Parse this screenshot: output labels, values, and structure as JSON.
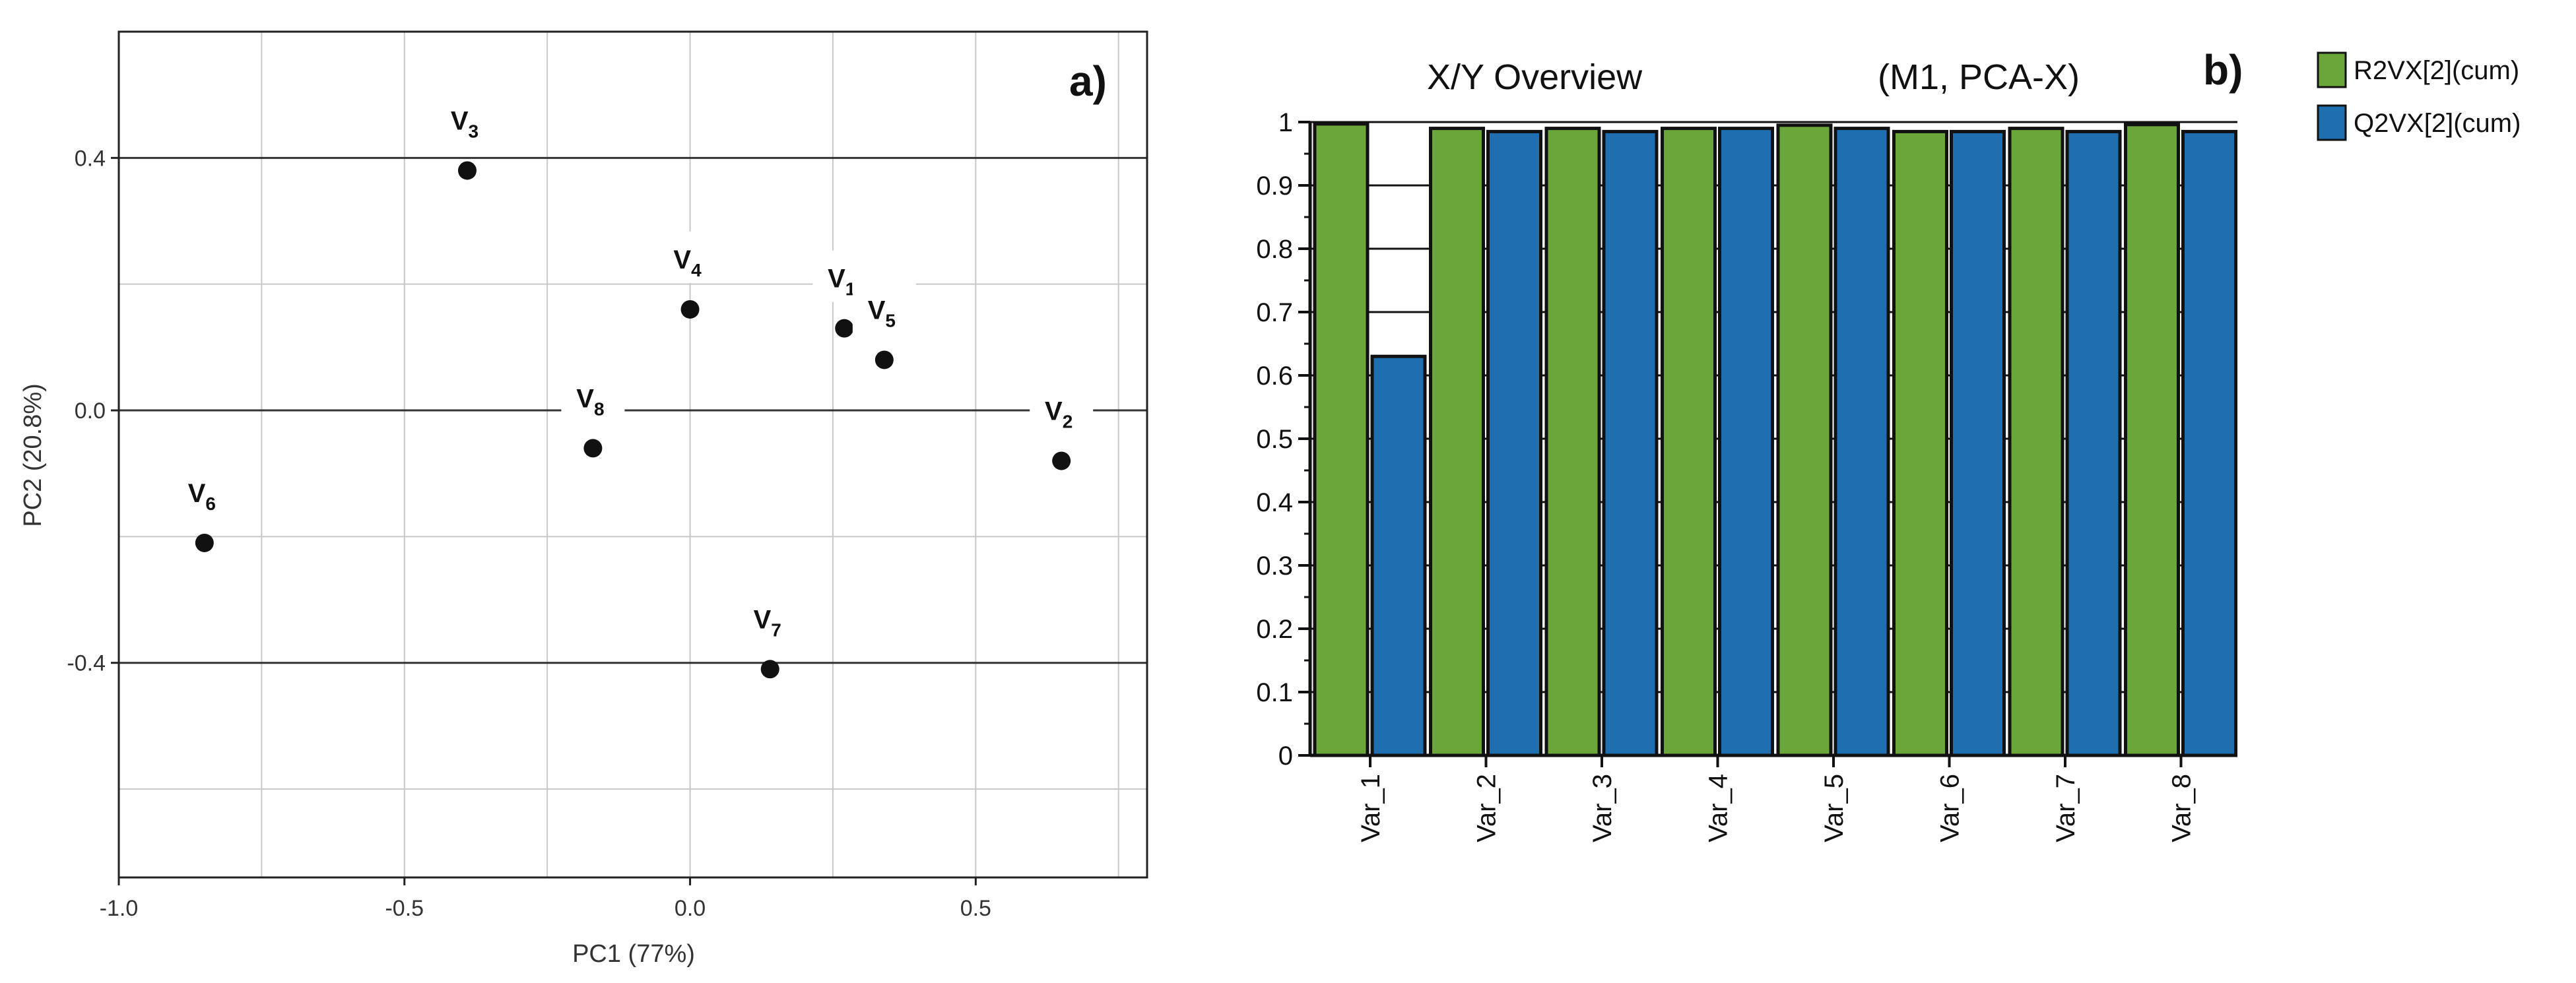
{
  "chart_data": [
    {
      "type": "scatter",
      "panel_label": "a)",
      "title": "",
      "xlabel": "PC1 (77%)",
      "ylabel": "PC2 (20.8%)",
      "xlim": [
        -1.0,
        0.8
      ],
      "ylim": [
        -0.74,
        0.6
      ],
      "xticks": [
        -1.0,
        -0.5,
        0.0,
        0.5
      ],
      "xtick_labels": [
        "-1.0",
        "-0.5",
        "0.0",
        "0.5"
      ],
      "yticks": [
        -0.4,
        0.0,
        0.4
      ],
      "ytick_labels": [
        "-0.4",
        "0.0",
        "0.4"
      ],
      "grid": true,
      "points": [
        {
          "name": "V",
          "sub": "1",
          "x": 0.27,
          "y": 0.13
        },
        {
          "name": "V",
          "sub": "2",
          "x": 0.65,
          "y": -0.08
        },
        {
          "name": "V",
          "sub": "3",
          "x": -0.39,
          "y": 0.38
        },
        {
          "name": "V",
          "sub": "4",
          "x": 0.0,
          "y": 0.16
        },
        {
          "name": "V",
          "sub": "5",
          "x": 0.34,
          "y": 0.08
        },
        {
          "name": "V",
          "sub": "6",
          "x": -0.85,
          "y": -0.21
        },
        {
          "name": "V",
          "sub": "7",
          "x": 0.14,
          "y": -0.41
        },
        {
          "name": "V",
          "sub": "8",
          "x": -0.17,
          "y": -0.06
        }
      ]
    },
    {
      "type": "bar",
      "panel_label": "b)",
      "title": "X/Y Overview",
      "subtitle": "(M1, PCA-X)",
      "xlabel": "",
      "ylabel": "",
      "ylim": [
        0,
        1
      ],
      "yticks": [
        0,
        0.1,
        0.2,
        0.3,
        0.4,
        0.5,
        0.6,
        0.7,
        0.8,
        0.9,
        1
      ],
      "ytick_labels": [
        "0",
        "0.1",
        "0.2",
        "0.3",
        "0.4",
        "0.5",
        "0.6",
        "0.7",
        "0.8",
        "0.9",
        "1"
      ],
      "categories": [
        "Var_1",
        "Var_2",
        "Var_3",
        "Var_4",
        "Var_5",
        "Var_6",
        "Var_7",
        "Var_8"
      ],
      "series": [
        {
          "name": "R2VX[2](cum)",
          "color": "#6aa63a",
          "values": [
            0.997,
            0.99,
            0.99,
            0.99,
            0.995,
            0.985,
            0.99,
            0.996
          ]
        },
        {
          "name": "Q2VX[2](cum)",
          "color": "#1f6fb0",
          "values": [
            0.63,
            0.985,
            0.985,
            0.99,
            0.99,
            0.985,
            0.985,
            0.985
          ]
        }
      ],
      "legend_position": "top-right"
    }
  ]
}
